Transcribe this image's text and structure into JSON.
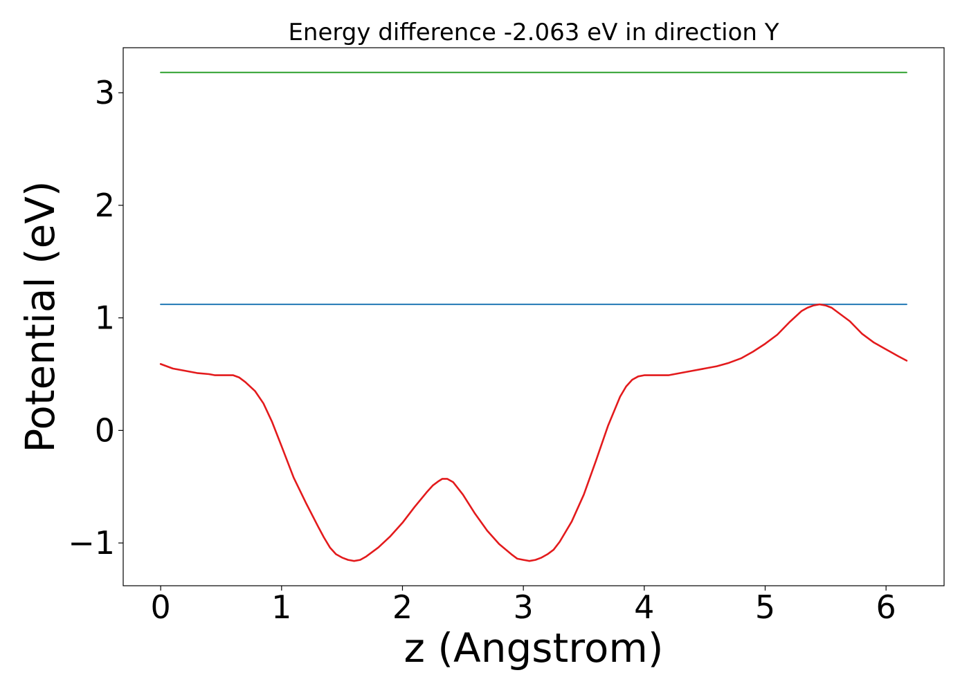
{
  "chart_data": {
    "type": "line",
    "title": "Energy difference -2.063 eV in direction Y",
    "xlabel": "z (Angstrom)",
    "ylabel": "Potential (eV)",
    "xlim": [
      -0.31,
      6.48
    ],
    "ylim": [
      -1.38,
      3.4
    ],
    "x_ticks": [
      0,
      1,
      2,
      3,
      4,
      5,
      6
    ],
    "x_tick_labels": [
      "0",
      "1",
      "2",
      "3",
      "4",
      "5",
      "6"
    ],
    "y_ticks": [
      -1,
      0,
      1,
      2,
      3
    ],
    "y_tick_labels": [
      "−1",
      "0",
      "1",
      "2",
      "3"
    ],
    "grid": false,
    "legend": "none",
    "series": [
      {
        "color": "#2ca02c",
        "x": [
          0,
          6.17
        ],
        "y": [
          3.18,
          3.18
        ]
      },
      {
        "color": "#1f77b4",
        "x": [
          0,
          6.17
        ],
        "y": [
          1.12,
          1.12
        ]
      },
      {
        "color": "#e31a1c",
        "x": [
          0,
          0.1,
          0.2,
          0.3,
          0.4,
          0.45,
          0.5,
          0.55,
          0.6,
          0.65,
          0.7,
          0.78,
          0.85,
          0.92,
          1.0,
          1.1,
          1.2,
          1.3,
          1.35,
          1.4,
          1.45,
          1.5,
          1.55,
          1.6,
          1.65,
          1.7,
          1.8,
          1.9,
          2.0,
          2.1,
          2.2,
          2.25,
          2.3,
          2.33,
          2.37,
          2.42,
          2.5,
          2.6,
          2.7,
          2.8,
          2.9,
          2.95,
          3.0,
          3.05,
          3.1,
          3.15,
          3.2,
          3.25,
          3.3,
          3.4,
          3.5,
          3.6,
          3.7,
          3.8,
          3.85,
          3.9,
          3.95,
          4.0,
          4.05,
          4.1,
          4.2,
          4.3,
          4.4,
          4.5,
          4.6,
          4.7,
          4.8,
          4.9,
          5.0,
          5.1,
          5.2,
          5.3,
          5.35,
          5.4,
          5.45,
          5.5,
          5.55,
          5.6,
          5.7,
          5.8,
          5.9,
          6.0,
          6.1,
          6.17
        ],
        "y": [
          0.59,
          0.55,
          0.53,
          0.51,
          0.5,
          0.49,
          0.49,
          0.49,
          0.49,
          0.47,
          0.43,
          0.35,
          0.24,
          0.08,
          -0.14,
          -0.42,
          -0.64,
          -0.85,
          -0.95,
          -1.04,
          -1.1,
          -1.13,
          -1.15,
          -1.16,
          -1.15,
          -1.12,
          -1.04,
          -0.94,
          -0.82,
          -0.68,
          -0.55,
          -0.49,
          -0.45,
          -0.43,
          -0.43,
          -0.46,
          -0.57,
          -0.74,
          -0.89,
          -1.01,
          -1.1,
          -1.14,
          -1.15,
          -1.16,
          -1.15,
          -1.13,
          -1.1,
          -1.06,
          -0.99,
          -0.81,
          -0.57,
          -0.27,
          0.04,
          0.3,
          0.39,
          0.45,
          0.48,
          0.49,
          0.49,
          0.49,
          0.49,
          0.51,
          0.53,
          0.55,
          0.57,
          0.6,
          0.64,
          0.7,
          0.77,
          0.85,
          0.96,
          1.06,
          1.09,
          1.11,
          1.12,
          1.11,
          1.09,
          1.05,
          0.97,
          0.86,
          0.78,
          0.72,
          0.66,
          0.62
        ]
      }
    ]
  }
}
